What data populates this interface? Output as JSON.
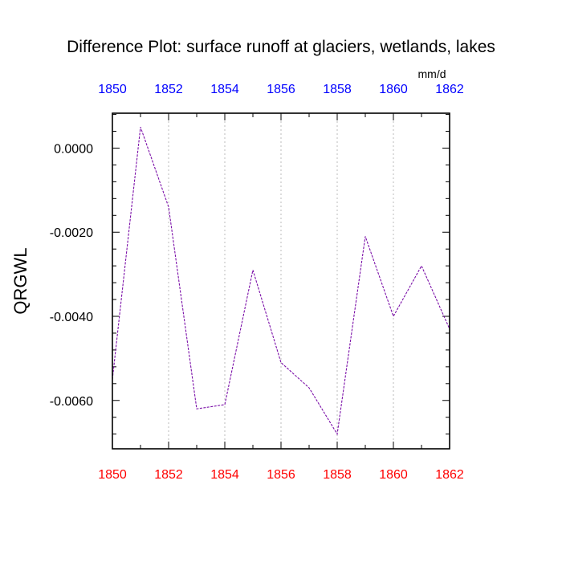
{
  "chart_data": {
    "type": "line",
    "title": "Difference Plot: surface runoff at glaciers, wetlands, lakes",
    "units": "mm/d",
    "ylabel": "QRGWL",
    "xlim": [
      1850,
      1862
    ],
    "ylim": [
      -0.00715,
      0.00083
    ],
    "x_major_ticks": [
      1850,
      1852,
      1854,
      1856,
      1858,
      1860,
      1862
    ],
    "x_tick_labels": [
      "1850",
      "1852",
      "1854",
      "1856",
      "1858",
      "1860",
      "1862"
    ],
    "y_major_ticks": [
      0.0,
      -0.002,
      -0.004,
      -0.006
    ],
    "y_tick_labels": [
      "0.0000",
      "-0.0020",
      "-0.0040",
      "-0.0060"
    ],
    "grid": "vertical dotted at major x ticks",
    "colors": {
      "line": "#7b0fa8",
      "top_tick_labels": "#0000ff",
      "bottom_tick_labels": "#ff0000",
      "grid": "#bbbbbb",
      "frame": "#000000"
    },
    "series": [
      {
        "x": [
          1850,
          1851,
          1852,
          1853,
          1854,
          1855,
          1856,
          1857,
          1858,
          1859,
          1860,
          1861,
          1862
        ],
        "values": [
          -0.0055,
          0.0005,
          -0.0014,
          -0.0062,
          -0.0061,
          -0.0029,
          -0.0051,
          -0.0057,
          -0.0068,
          -0.0021,
          -0.004,
          -0.0028,
          -0.0043
        ]
      }
    ]
  }
}
